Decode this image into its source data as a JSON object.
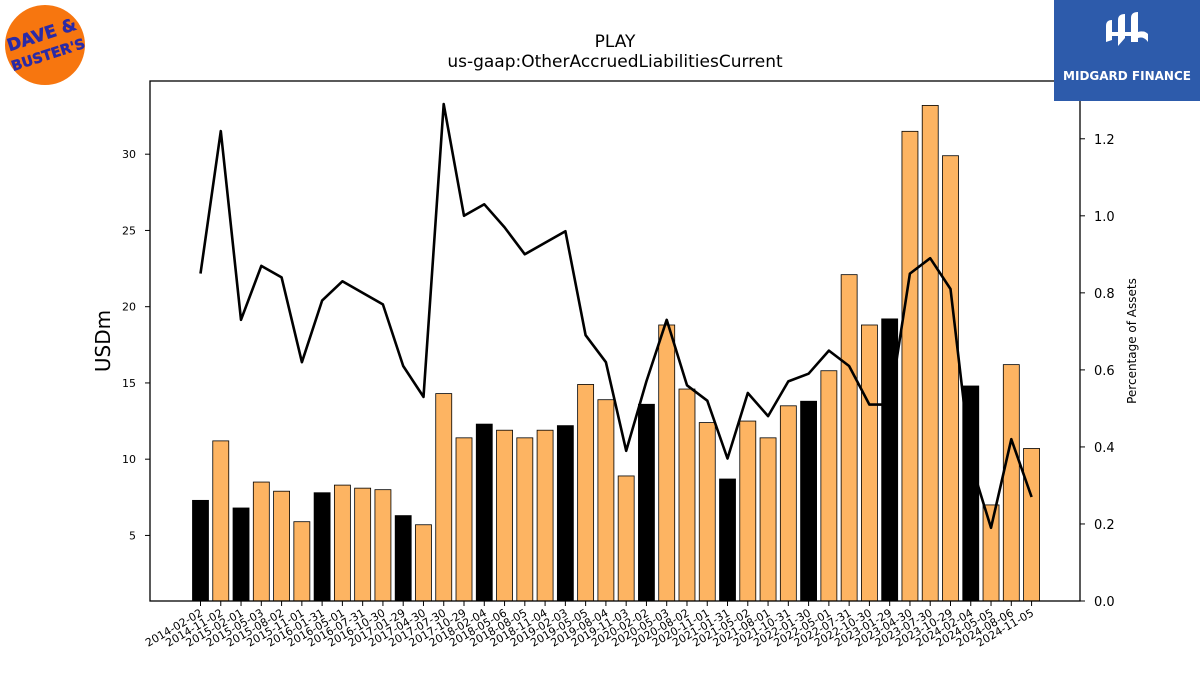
{
  "title_line1": "PLAY",
  "title_line2": "us-gaap:OtherAccruedLiabilitiesCurrent",
  "logo_left_text": "DAVE & BUSTER'S",
  "logo_right_text": "MIDGARD FINANCE",
  "colors": {
    "bar": "#fdb462",
    "bar_highlight": "#000000",
    "line": "#000000"
  },
  "chart_data": {
    "type": "bar",
    "categories": [
      "2014-02-02",
      "2014-11-02",
      "2015-02-01",
      "2015-05-03",
      "2015-08-02",
      "2015-11-01",
      "2016-01-31",
      "2016-05-01",
      "2016-07-31",
      "2016-10-30",
      "2017-01-29",
      "2017-04-30",
      "2017-07-30",
      "2017-10-29",
      "2018-02-04",
      "2018-05-06",
      "2018-08-05",
      "2018-11-04",
      "2019-02-03",
      "2019-05-05",
      "2019-08-04",
      "2019-11-03",
      "2020-02-02",
      "2020-05-03",
      "2020-08-02",
      "2020-11-01",
      "2021-01-31",
      "2021-05-02",
      "2021-08-01",
      "2021-10-31",
      "2022-01-30",
      "2022-05-01",
      "2022-07-31",
      "2022-10-30",
      "2023-01-29",
      "2023-04-30",
      "2023-07-30",
      "2023-10-29",
      "2024-02-04",
      "2024-05-05",
      "2024-08-06",
      "2024-11-05"
    ],
    "series": [
      {
        "axis": "left",
        "type": "bar",
        "values": [
          7.3,
          11.2,
          6.8,
          8.5,
          7.9,
          5.9,
          7.8,
          8.3,
          8.1,
          8.0,
          6.3,
          5.7,
          14.3,
          11.4,
          12.3,
          11.9,
          11.4,
          11.9,
          12.2,
          14.9,
          13.9,
          8.9,
          13.6,
          18.8,
          14.6,
          12.4,
          8.7,
          12.5,
          11.4,
          13.5,
          13.8,
          15.8,
          22.1,
          18.8,
          19.2,
          31.5,
          33.2,
          29.9,
          14.8,
          7.0,
          16.2,
          10.7
        ],
        "highlight": [
          true,
          false,
          true,
          false,
          false,
          false,
          true,
          false,
          false,
          false,
          true,
          false,
          false,
          false,
          true,
          false,
          false,
          false,
          true,
          false,
          false,
          false,
          true,
          false,
          false,
          false,
          true,
          false,
          false,
          false,
          true,
          false,
          false,
          false,
          true,
          false,
          false,
          false,
          true,
          false,
          false,
          false
        ]
      },
      {
        "axis": "right",
        "type": "line",
        "values": [
          0.85,
          1.22,
          0.73,
          0.87,
          0.84,
          0.62,
          0.78,
          0.83,
          0.8,
          0.77,
          0.61,
          0.53,
          1.29,
          1.0,
          1.03,
          0.97,
          0.9,
          0.93,
          0.96,
          0.69,
          0.62,
          0.39,
          0.57,
          0.73,
          0.56,
          0.52,
          0.37,
          0.54,
          0.48,
          0.57,
          0.59,
          0.65,
          0.61,
          0.51,
          0.51,
          0.85,
          0.89,
          0.81,
          0.36,
          0.19,
          0.42,
          0.27
        ]
      }
    ],
    "ylabel": "USDm",
    "y2label": "Percentage of Assets",
    "ylim": [
      0.7,
      34.8
    ],
    "y2lim": [
      0.0,
      1.35
    ],
    "yticks": [
      5,
      10,
      15,
      20,
      25,
      30
    ],
    "y2ticks": [
      "0.0",
      "0.2",
      "0.4",
      "0.6",
      "0.8",
      "1.0",
      "1.2"
    ],
    "grid": false
  }
}
